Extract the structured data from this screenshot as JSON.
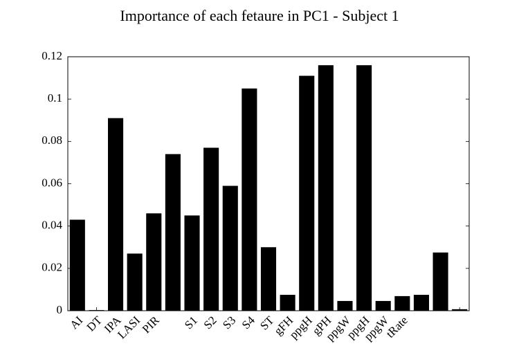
{
  "chart_data": {
    "type": "bar",
    "title": "Importance of each fetaure in PC1 - Subject 1",
    "categories": [
      "AI",
      "DT",
      "IPA",
      "LASI",
      "PIR",
      null,
      "S1",
      "S2",
      "S3",
      "S4",
      "ST",
      "gFH",
      "ppgH",
      "gPH",
      "ppgW",
      "ppgH",
      "ppgW",
      "tRate",
      null,
      null,
      null
    ],
    "values": [
      0.043,
      0.0003,
      0.091,
      0.027,
      0.046,
      0.074,
      0.045,
      0.077,
      0.059,
      0.105,
      0.03,
      0.0075,
      0.111,
      0.116,
      0.0046,
      0.116,
      0.0046,
      0.0069,
      0.0075,
      0.0275,
      0.0007
    ],
    "color": "#000000",
    "ylim": [
      0,
      0.12
    ],
    "yticks": [
      0,
      0.02,
      0.04,
      0.06,
      0.08,
      0.1,
      0.12
    ]
  }
}
